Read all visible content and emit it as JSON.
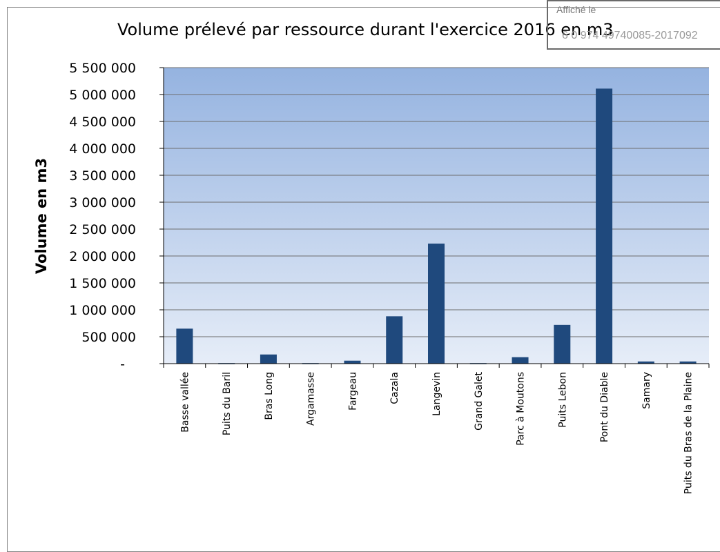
{
  "stamp": {
    "label": "Affiché le",
    "code": "6 0 974 49740085-2017092"
  },
  "chart_data": {
    "type": "bar",
    "title": "Volume prélevé par ressource durant l'exercice 2016 en m3",
    "ylabel": "Volume en m3",
    "xlabel": "",
    "ylim": [
      0,
      5500000
    ],
    "yticks": [
      0,
      500000,
      1000000,
      1500000,
      2000000,
      2500000,
      3000000,
      3500000,
      4000000,
      4500000,
      5000000,
      5500000
    ],
    "ytick_labels": [
      "-",
      "500 000",
      "1 000 000",
      "1 500 000",
      "2 000 000",
      "2 500 000",
      "3 000 000",
      "3 500 000",
      "4 000 000",
      "4 500 000",
      "5 000 000",
      "5 500 000"
    ],
    "categories": [
      "Basse vallée",
      "Puits du Baril",
      "Bras Long",
      "Argamasse",
      "Fargeau",
      "Cazala",
      "Langevin",
      "Grand Galet",
      "Parc à Moutons",
      "Puits Lebon",
      "Pont du Diable",
      "Samary",
      "Puits du Bras de la Plaine"
    ],
    "values": [
      650000,
      10000,
      170000,
      10000,
      55000,
      880000,
      2230000,
      10000,
      120000,
      720000,
      5110000,
      40000,
      40000
    ],
    "grid": true,
    "legend": "none",
    "colors": {
      "bar": "#1f497d",
      "plot_top": "#95b3e0",
      "plot_bottom": "#e6edf8",
      "grid": "#6d6d6d"
    }
  }
}
